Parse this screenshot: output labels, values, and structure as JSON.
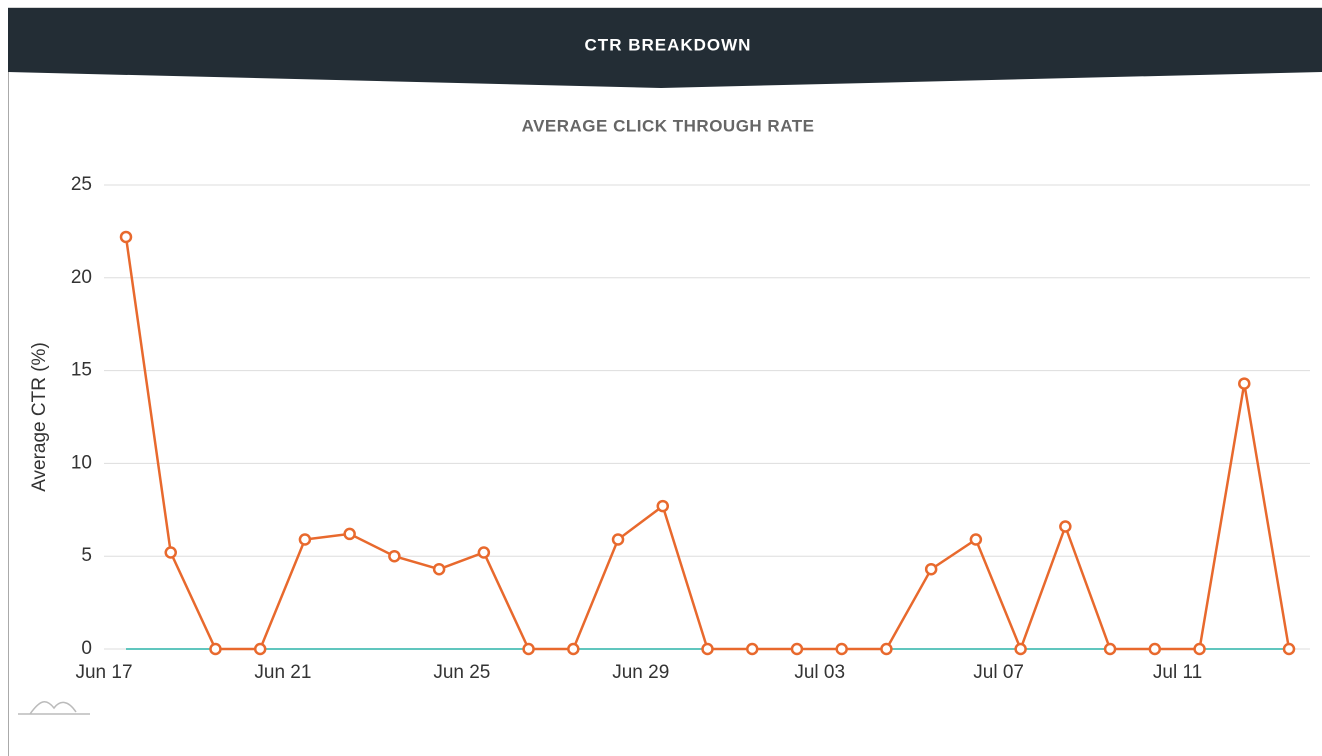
{
  "header": {
    "title": "CTR BREAKDOWN"
  },
  "chart_data": {
    "type": "line",
    "title": "AVERAGE CLICK THROUGH RATE",
    "y_label": "Average CTR (%)",
    "categories": [
      "Jun 17",
      null,
      null,
      null,
      "Jun 21",
      null,
      null,
      null,
      "Jun 25",
      null,
      null,
      null,
      "Jun 29",
      null,
      null,
      null,
      "Jul 03",
      null,
      null,
      null,
      "Jul 07",
      null,
      null,
      null,
      "Jul 11",
      null,
      null
    ],
    "series": [
      {
        "name": "Average CTR",
        "color": "#e8692d",
        "values": [
          22.2,
          5.2,
          0,
          0,
          5.9,
          6.2,
          5.0,
          4.3,
          5.2,
          0,
          0,
          5.9,
          7.7,
          0,
          0,
          0,
          0,
          0,
          4.3,
          5.9,
          0,
          6.6,
          0,
          0,
          0,
          14.3,
          0
        ]
      }
    ],
    "ylim": [
      0,
      25
    ],
    "yticks": [
      0,
      5,
      10,
      15,
      20,
      25
    ],
    "grid": true
  }
}
